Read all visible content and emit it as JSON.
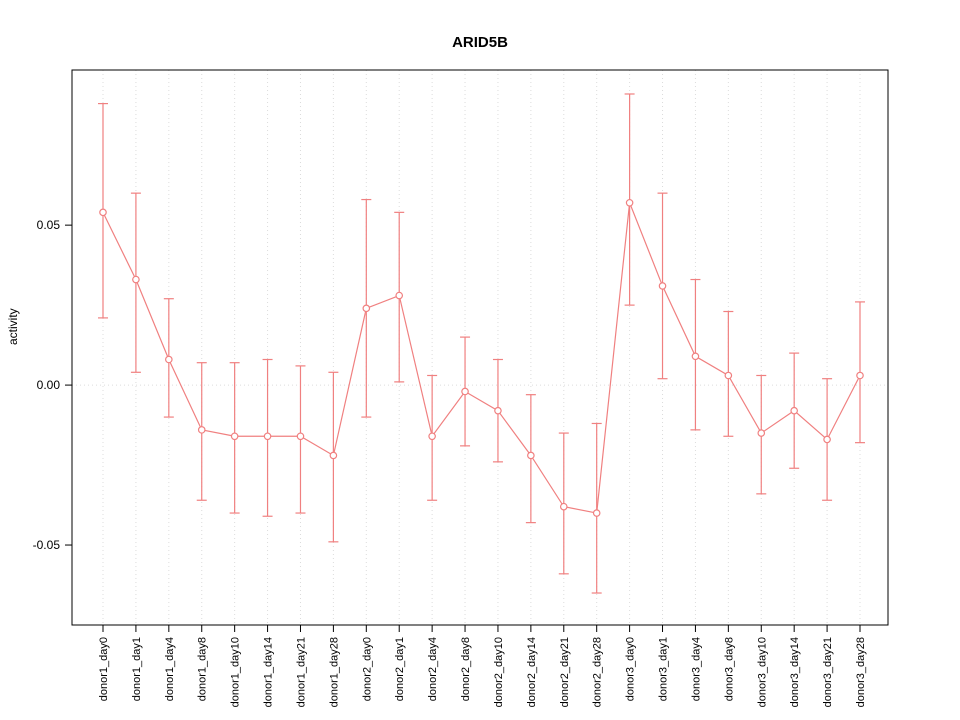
{
  "figure": {
    "title": "ARID5B"
  },
  "chart_data": {
    "type": "line",
    "title": "ARID5B",
    "xlabel": "",
    "ylabel": "activity",
    "ylim": [
      -0.075,
      0.0985
    ],
    "yticks": [
      -0.05,
      0,
      0.05
    ],
    "ytick_labels": [
      "-0.05",
      "0.00",
      "0.05"
    ],
    "grid": "dotted vertical gridline at each category; dotted horizontal line at y=0",
    "legend": "none",
    "series_color": "#f08080",
    "point_style": "open-circle",
    "error_bars": true,
    "categories": [
      "donor1_day0",
      "donor1_day1",
      "donor1_day4",
      "donor1_day8",
      "donor1_day10",
      "donor1_day14",
      "donor1_day21",
      "donor1_day28",
      "donor2_day0",
      "donor2_day1",
      "donor2_day4",
      "donor2_day8",
      "donor2_day10",
      "donor2_day14",
      "donor2_day21",
      "donor2_day28",
      "donor3_day0",
      "donor3_day1",
      "donor3_day4",
      "donor3_day8",
      "donor3_day10",
      "donor3_day14",
      "donor3_day21",
      "donor3_day28"
    ],
    "series": [
      {
        "name": "activity",
        "values": [
          0.054,
          0.033,
          0.008,
          -0.014,
          -0.016,
          -0.016,
          -0.016,
          -0.022,
          0.024,
          0.028,
          -0.016,
          -0.002,
          -0.008,
          -0.022,
          -0.038,
          -0.04,
          0.057,
          0.031,
          0.009,
          0.003,
          -0.015,
          -0.008,
          -0.017,
          0.003
        ],
        "lower": [
          0.021,
          0.004,
          -0.01,
          -0.036,
          -0.04,
          -0.041,
          -0.04,
          -0.049,
          -0.01,
          0.001,
          -0.036,
          -0.019,
          -0.024,
          -0.043,
          -0.059,
          -0.065,
          0.025,
          0.002,
          -0.014,
          -0.016,
          -0.034,
          -0.026,
          -0.036,
          -0.018
        ],
        "upper": [
          0.088,
          0.06,
          0.027,
          0.007,
          0.007,
          0.008,
          0.006,
          0.004,
          0.058,
          0.054,
          0.003,
          0.015,
          0.008,
          -0.003,
          -0.015,
          -0.012,
          0.091,
          0.06,
          0.033,
          0.023,
          0.003,
          0.01,
          0.002,
          0.026
        ]
      }
    ]
  }
}
